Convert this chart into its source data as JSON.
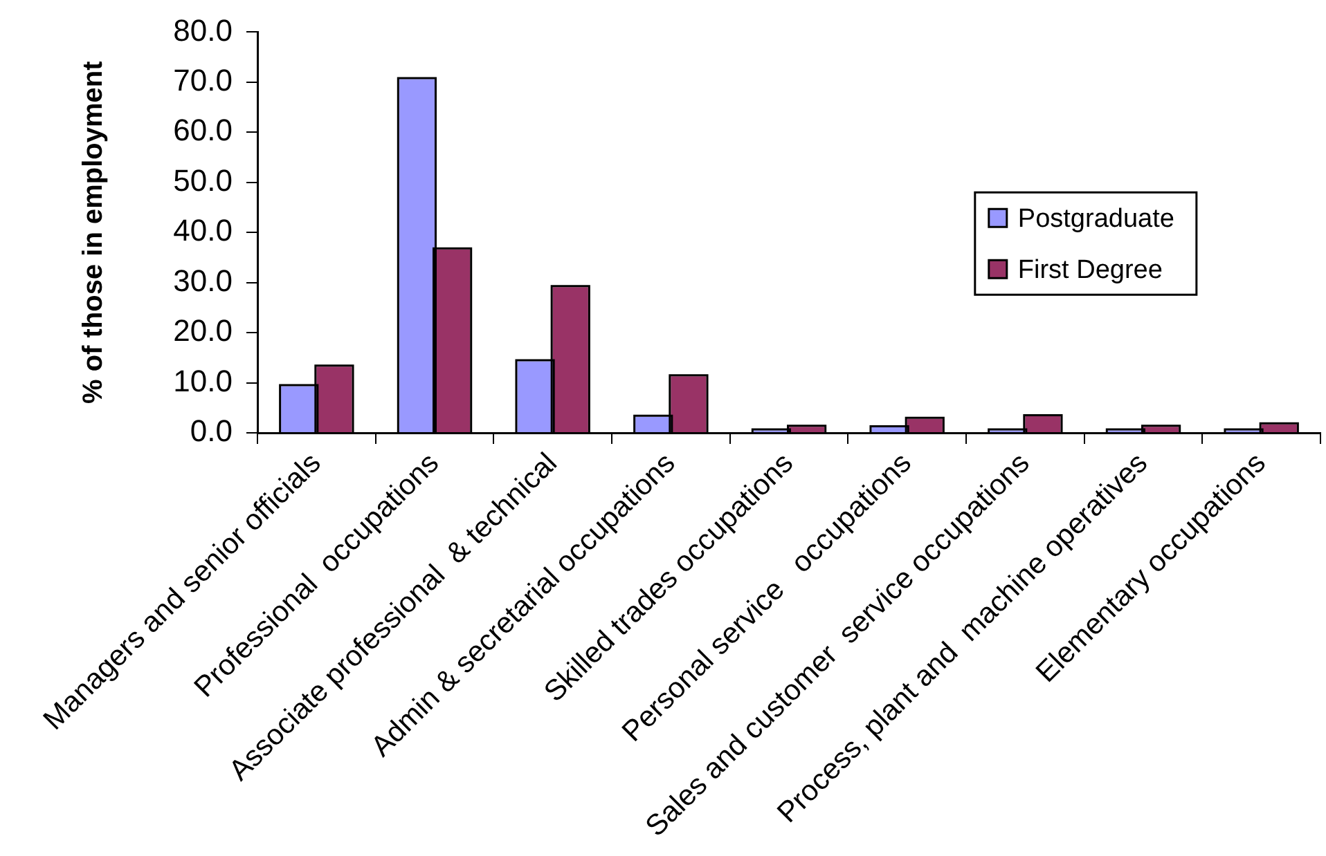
{
  "chart_data": {
    "type": "bar",
    "ylabel": "% of those in employment",
    "categories": [
      "Managers and senior officials",
      "Professional  occupations",
      "Associate professional  & technical",
      "Admin & secretarial occupations",
      "Skilled trades occupations",
      "Personal service   occupations",
      "Sales and customer  service occupations",
      "Process, plant and  machine operatives",
      "Elementary occupations"
    ],
    "series": [
      {
        "name": "Postgraduate",
        "color": "#9999ff",
        "values": [
          9.3,
          70.6,
          14.3,
          3.2,
          0.5,
          1.1,
          0.5,
          0.5,
          0.5
        ]
      },
      {
        "name": "First Degree",
        "color": "#993366",
        "values": [
          13.2,
          36.6,
          29.1,
          11.3,
          1.2,
          2.8,
          3.3,
          1.2,
          1.7
        ]
      }
    ],
    "ylim": [
      0,
      80
    ],
    "yticks": [
      {
        "value": 0,
        "label": "0.0"
      },
      {
        "value": 10,
        "label": "10.0"
      },
      {
        "value": 20,
        "label": "20.0"
      },
      {
        "value": 30,
        "label": "30.0"
      },
      {
        "value": 40,
        "label": "40.0"
      },
      {
        "value": 50,
        "label": "50.0"
      },
      {
        "value": 60,
        "label": "60.0"
      },
      {
        "value": 70,
        "label": "70.0"
      },
      {
        "value": 80,
        "label": "80.0"
      }
    ],
    "legend": "right"
  }
}
